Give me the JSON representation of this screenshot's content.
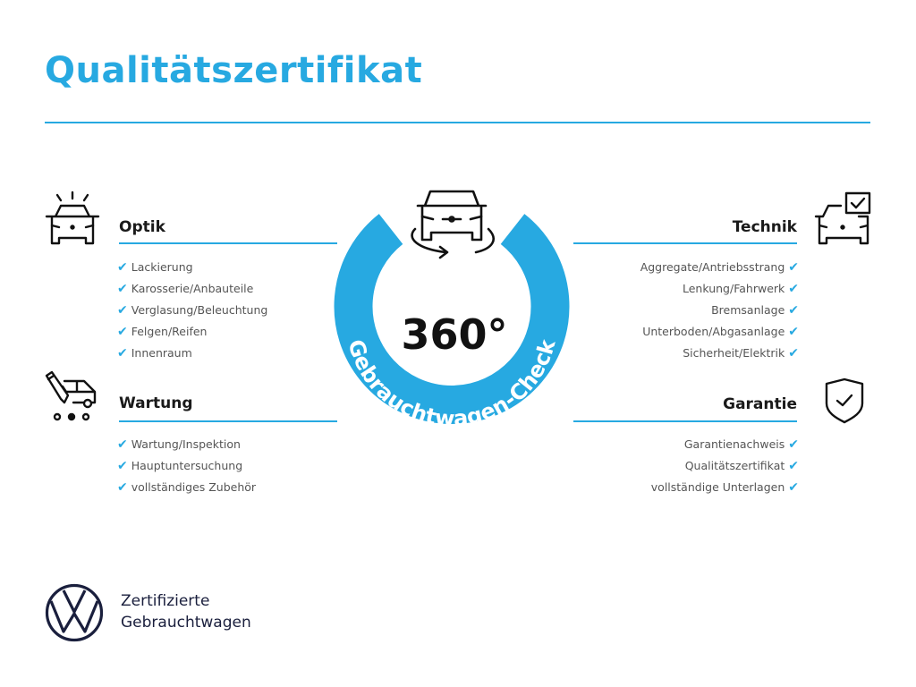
{
  "title": "Qualitätszertifikat",
  "accent_color": "#27a9e1",
  "center": {
    "degrees": "360°",
    "ring_text": "Gebrauchtwagen-Check",
    "icon": "car-rotate-icon"
  },
  "sections": {
    "optik": {
      "heading": "Optik",
      "icon": "car-lights-icon",
      "items": [
        "Lackierung",
        "Karosserie/Anbauteile",
        "Verglasung/Beleuchtung",
        "Felgen/Reifen",
        "Innenraum"
      ]
    },
    "wartung": {
      "heading": "Wartung",
      "icon": "service-van-icon",
      "items": [
        "Wartung/Inspektion",
        "Hauptuntersuchung",
        "vollständiges Zubehör"
      ]
    },
    "technik": {
      "heading": "Technik",
      "icon": "car-checkbox-icon",
      "items": [
        "Aggregate/Antriebsstrang",
        "Lenkung/Fahrwerk",
        "Bremsanlage",
        "Unterboden/Abgasanlage",
        "Sicherheit/Elektrik"
      ]
    },
    "garantie": {
      "heading": "Garantie",
      "icon": "shield-check-icon",
      "items": [
        "Garantienachweis",
        "Qualitätszertifikat",
        "vollständige Unterlagen"
      ]
    }
  },
  "check_glyph": "✔",
  "brand": {
    "line1": "Zertifizierte",
    "line2": "Gebrauchtwagen",
    "logo": "vw-logo"
  }
}
